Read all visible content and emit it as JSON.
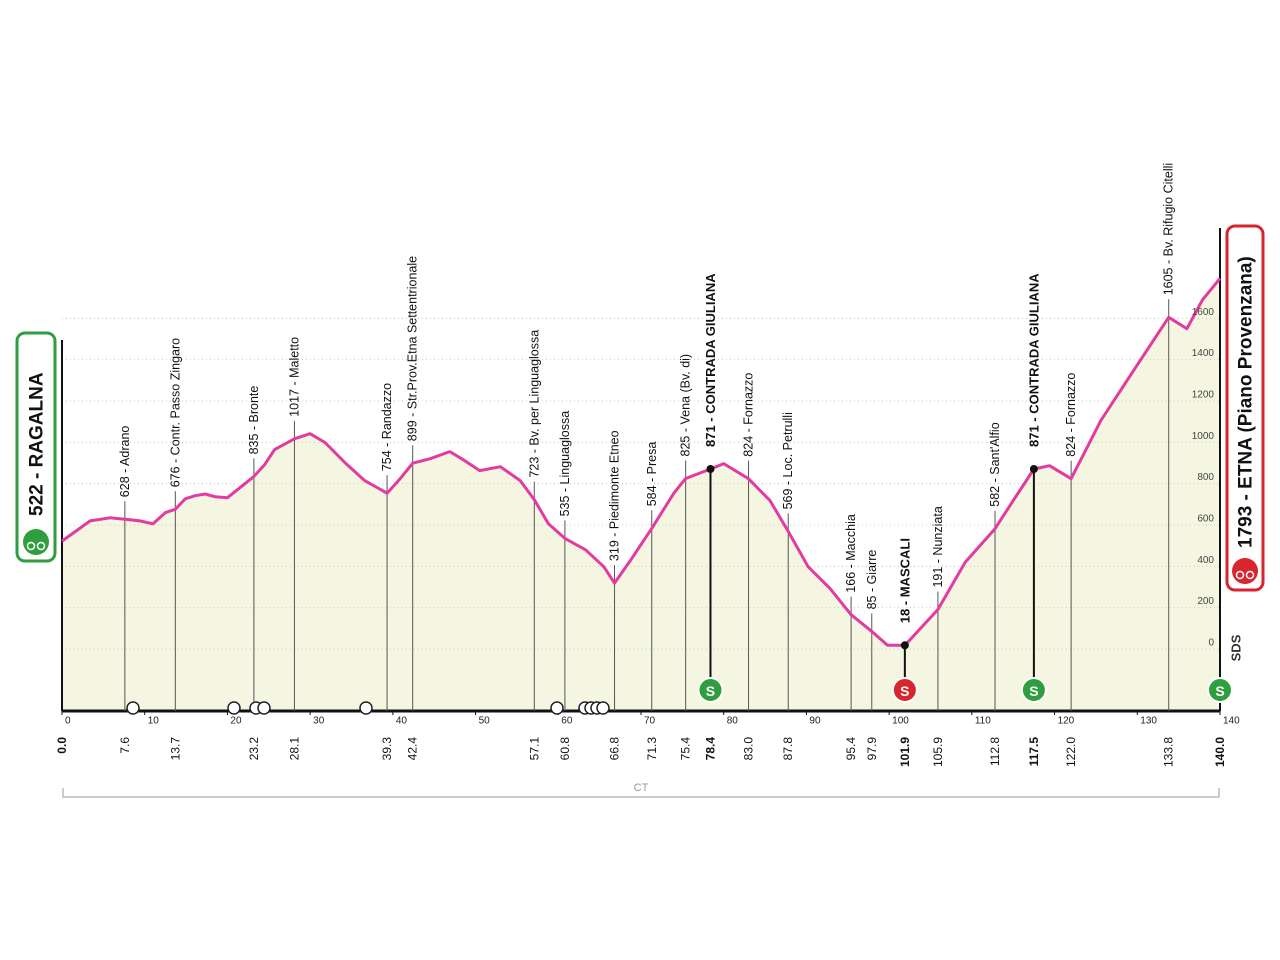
{
  "chart_data": {
    "type": "area",
    "x": [
      0,
      3.4,
      5.8,
      7.6,
      9.4,
      11,
      12.5,
      13.7,
      14.9,
      16.1,
      17.3,
      18.5,
      20,
      21.5,
      23.2,
      24.5,
      25.7,
      28.1,
      30,
      31.8,
      34.2,
      36.6,
      39.3,
      40.9,
      42.4,
      44.5,
      46.9,
      48.7,
      50.5,
      53,
      55.4,
      57.1,
      58.8,
      60.8,
      63.3,
      65.5,
      66.8,
      68.7,
      71.3,
      74,
      75.4,
      78.4,
      80,
      83,
      85.6,
      87.8,
      90.2,
      92.9,
      95.4,
      97.9,
      99.8,
      101.9,
      105.9,
      109.2,
      112.8,
      115,
      117.5,
      119.4,
      122,
      125.6,
      129.9,
      133.8,
      136,
      137.9,
      140
    ],
    "values": [
      522,
      620,
      635,
      628,
      620,
      606,
      660,
      676,
      727,
      742,
      750,
      737,
      732,
      780,
      835,
      892,
      965,
      1017,
      1042,
      999,
      902,
      815,
      754,
      825,
      899,
      921,
      955,
      911,
      863,
      882,
      815,
      723,
      606,
      535,
      480,
      398,
      319,
      427,
      584,
      756,
      825,
      871,
      897,
      824,
      718,
      569,
      398,
      291,
      166,
      85,
      18,
      18,
      191,
      420,
      582,
      718,
      871,
      887,
      824,
      1106,
      1369,
      1605,
      1550,
      1690,
      1793
    ],
    "color": "#e23ba1",
    "fill": "#f4f6e2",
    "xlim": [
      0,
      140
    ],
    "xticks": [
      0,
      10,
      20,
      30,
      40,
      50,
      60,
      70,
      80,
      90,
      100,
      110,
      120,
      130,
      140
    ],
    "ylim": [
      -300,
      1800
    ],
    "yticks": [
      0,
      200,
      400,
      600,
      800,
      1000,
      1200,
      1400,
      1600
    ],
    "grid": true,
    "sprint_label": "S",
    "area_label": "CT",
    "sponsor": "SDS",
    "start": {
      "km": {
        "value": 0,
        "label": "0.0"
      },
      "label": "522 - RAGALNA"
    },
    "finish": {
      "km": {
        "value": 140,
        "label": "140.0"
      },
      "label": "1793 - ETNA (Piano Provenzana)",
      "sprint": "green"
    },
    "waypoints": [
      {
        "km": 7.6,
        "label": "628 - Adrano"
      },
      {
        "km": 13.7,
        "label": "676 - Contr. Passo Zingaro"
      },
      {
        "km": 23.2,
        "label": "835 - Bronte"
      },
      {
        "km": 28.1,
        "label": "1017 - Maletto"
      },
      {
        "km": 39.3,
        "label": "754 - Randazzo"
      },
      {
        "km": 42.4,
        "label": "899 - Str.Prov.Etna Settentrionale"
      },
      {
        "km": 57.1,
        "label": "723 - Bv. per Linguaglossa"
      },
      {
        "km": 60.8,
        "label": "535 - Linguaglossa"
      },
      {
        "km": 66.8,
        "label": "319 - Piedimonte Etneo"
      },
      {
        "km": 71.3,
        "label": "584 - Presa"
      },
      {
        "km": 75.4,
        "label": "825 - Vena (Bv. di)"
      },
      {
        "km": 78.4,
        "label": "871 - CONTRADA GIULIANA",
        "bold": true,
        "sprint": "green"
      },
      {
        "km": {
          "value": 83,
          "label": "83.0"
        },
        "label": "824 - Fornazzo"
      },
      {
        "km": 87.8,
        "label": "569 - Loc. Petrulli"
      },
      {
        "km": 95.4,
        "label": "166 - Macchia"
      },
      {
        "km": 97.9,
        "label": "85 - Giarre"
      },
      {
        "km": 101.9,
        "label": "18 - MASCALI",
        "bold": true,
        "sprint": "red"
      },
      {
        "km": 105.9,
        "label": "191 - Nunziata"
      },
      {
        "km": 112.8,
        "label": "582 - Sant'Alfio"
      },
      {
        "km": 117.5,
        "label": "871 - CONTRADA GIULIANA",
        "bold": true,
        "sprint": "green"
      },
      {
        "km": {
          "value": 122,
          "label": "122.0"
        },
        "label": "824 - Fornazzo"
      },
      {
        "km": 133.8,
        "label": "1605 - Bv. Rifugio Citelli"
      }
    ]
  }
}
